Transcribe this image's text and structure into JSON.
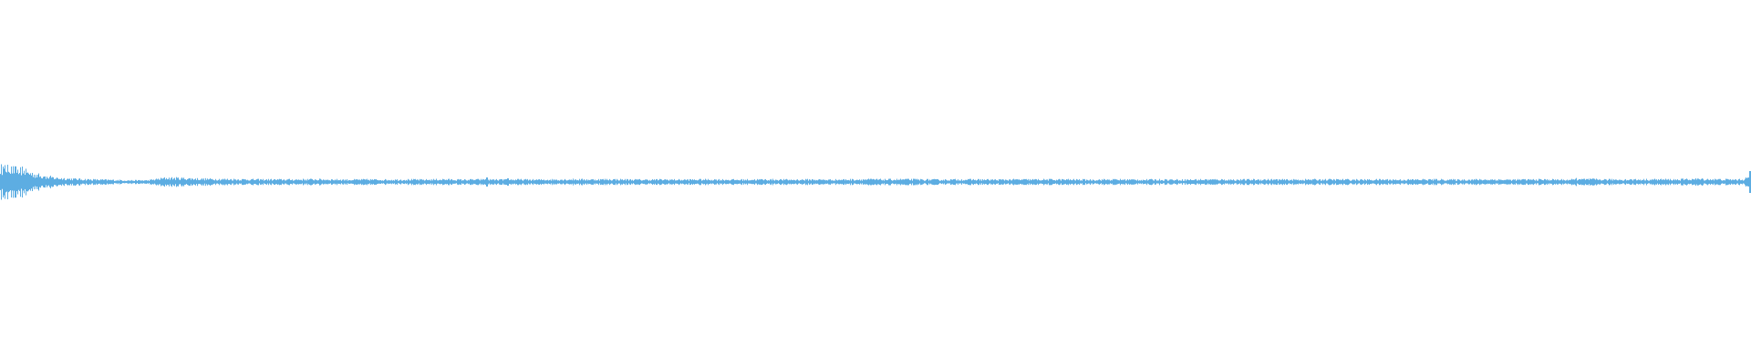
{
  "chart_data": {
    "type": "area",
    "description_kind": "audio-waveform",
    "color": "#5dade2",
    "background": "#ffffff",
    "ylim": [
      -1,
      1
    ],
    "grid": false,
    "title": "",
    "xlabel": "",
    "ylabel": "",
    "envelope": [
      0.07,
      0.06,
      0.035,
      0.02,
      0.015,
      0.012,
      0.01,
      0.008,
      0.008,
      0.02,
      0.018,
      0.015,
      0.014,
      0.013,
      0.012,
      0.012,
      0.012,
      0.013,
      0.012,
      0.011,
      0.012,
      0.011,
      0.012,
      0.011,
      0.013,
      0.011,
      0.012,
      0.011,
      0.012,
      0.011,
      0.012,
      0.013,
      0.012,
      0.013,
      0.012,
      0.011,
      0.012,
      0.011,
      0.012,
      0.012,
      0.011,
      0.012,
      0.012,
      0.011,
      0.012,
      0.011,
      0.012,
      0.013,
      0.012,
      0.013,
      0.012,
      0.011,
      0.012,
      0.012,
      0.011,
      0.012,
      0.012,
      0.012,
      0.012,
      0.011,
      0.012,
      0.012,
      0.011,
      0.012,
      0.011,
      0.012,
      0.012,
      0.011,
      0.012,
      0.012,
      0.011,
      0.012,
      0.012,
      0.012,
      0.011,
      0.012,
      0.011,
      0.012,
      0.012,
      0.011,
      0.012,
      0.012,
      0.011,
      0.012,
      0.012,
      0.011,
      0.014,
      0.012,
      0.012,
      0.012,
      0.013,
      0.012,
      0.015,
      0.013,
      0.012,
      0.012
    ],
    "spikes": [
      {
        "t": 0.002,
        "amp": 0.055
      },
      {
        "t": 0.0125,
        "amp": 0.085
      },
      {
        "t": 0.0255,
        "amp": 0.03
      },
      {
        "t": 0.278,
        "amp": 0.025
      },
      {
        "t": 0.29,
        "amp": 0.02
      },
      {
        "t": 0.9,
        "amp": 0.022
      },
      {
        "t": 0.999,
        "amp": 0.06
      }
    ]
  }
}
